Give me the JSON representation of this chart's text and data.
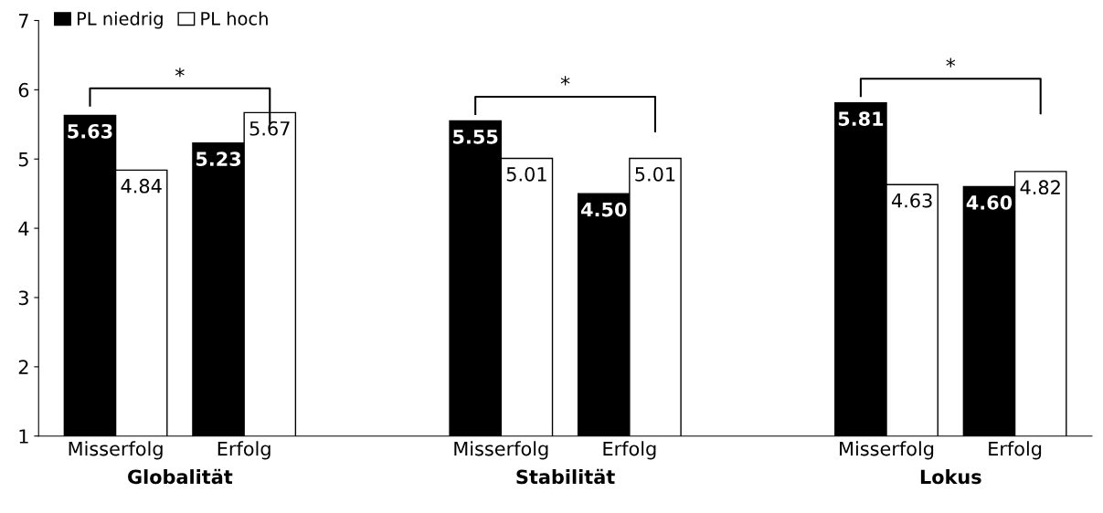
{
  "chart_data": {
    "type": "bar",
    "categories": [
      "Misserfolg",
      "Erfolg",
      null,
      "Misserfolg",
      "Erfolg",
      null,
      "Misserfolg",
      "Erfolg"
    ],
    "series": [
      {
        "name": "PL niedrig",
        "color": "#000000",
        "values": [
          5.63,
          5.23,
          null,
          5.55,
          4.5,
          null,
          5.81,
          4.6
        ],
        "value_labels": [
          "5.63",
          "5.23",
          null,
          "5.55",
          "4.50",
          null,
          "5.81",
          "4.60"
        ]
      },
      {
        "name": "PL hoch",
        "color": "#ffffff",
        "values": [
          4.84,
          5.67,
          null,
          5.01,
          5.01,
          null,
          4.63,
          4.82
        ],
        "value_labels": [
          "4.84",
          "5.67",
          null,
          "5.01",
          "5.01",
          null,
          "4.63",
          "4.82"
        ]
      }
    ],
    "ylim": [
      1,
      7
    ],
    "yticks": [
      1,
      2,
      3,
      4,
      5,
      6,
      7
    ],
    "legend": "top left",
    "grid": false,
    "annotations": [
      "Globalität",
      "Stabilität",
      "Lokus",
      "*",
      "*",
      "*"
    ]
  }
}
